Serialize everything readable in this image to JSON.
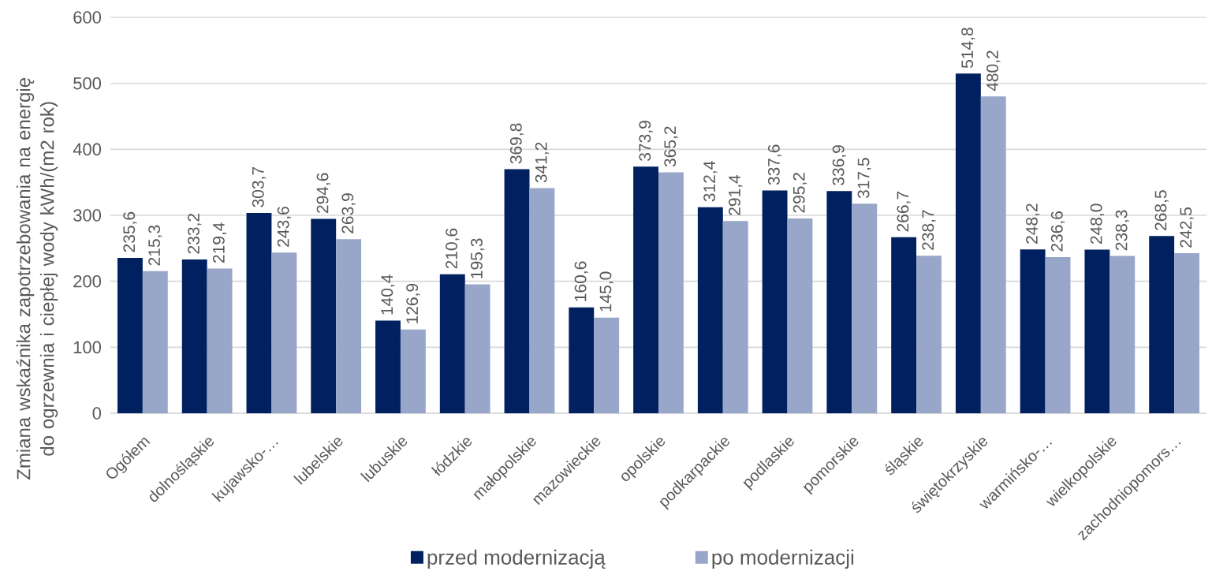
{
  "chart_data": {
    "type": "bar",
    "ylabel": "Zmiana wskaźnika zapotrzebowania na energię do ogrzewnia i ciepłej wody kWh/(m2 rok)",
    "categories": [
      "Ogółem",
      "dolnośląskie",
      "kujawsko-…",
      "lubelskie",
      "lubuskie",
      "łódzkie",
      "małopolskie",
      "mazowieckie",
      "opolskie",
      "podkarpackie",
      "podlaskie",
      "pomorskie",
      "śląskie",
      "świętokrzyskie",
      "warmińsko-…",
      "wielkopolskie",
      "zachodniopomors…"
    ],
    "series": [
      {
        "name": "przed modernizacją",
        "color": "#002060",
        "values": [
          235.6,
          233.2,
          303.7,
          294.6,
          140.4,
          210.6,
          369.8,
          160.6,
          373.9,
          312.4,
          337.6,
          336.9,
          266.7,
          514.8,
          248.2,
          248.0,
          268.5
        ],
        "value_labels": [
          "235,6",
          "233,2",
          "303,7",
          "294,6",
          "140,4",
          "210,6",
          "369,8",
          "160,6",
          "373,9",
          "312,4",
          "337,6",
          "336,9",
          "266,7",
          "514,8",
          "248,2",
          "248,0",
          "268,5"
        ]
      },
      {
        "name": "po modernizacji",
        "color": "#98a6c9",
        "values": [
          215.3,
          219.4,
          243.6,
          263.9,
          126.9,
          195.3,
          341.2,
          145.0,
          365.2,
          291.4,
          295.2,
          317.5,
          238.7,
          480.2,
          236.6,
          238.3,
          242.5
        ],
        "value_labels": [
          "215,3",
          "219,4",
          "243,6",
          "263,9",
          "126,9",
          "195,3",
          "341,2",
          "145,0",
          "365,2",
          "291,4",
          "295,2",
          "317,5",
          "238,7",
          "480,2",
          "236,6",
          "238,3",
          "242,5"
        ]
      }
    ],
    "ylim": [
      0,
      600
    ],
    "yticks": [
      0,
      100,
      200,
      300,
      400,
      500,
      600
    ],
    "grid": "y",
    "legend": "bottom"
  }
}
